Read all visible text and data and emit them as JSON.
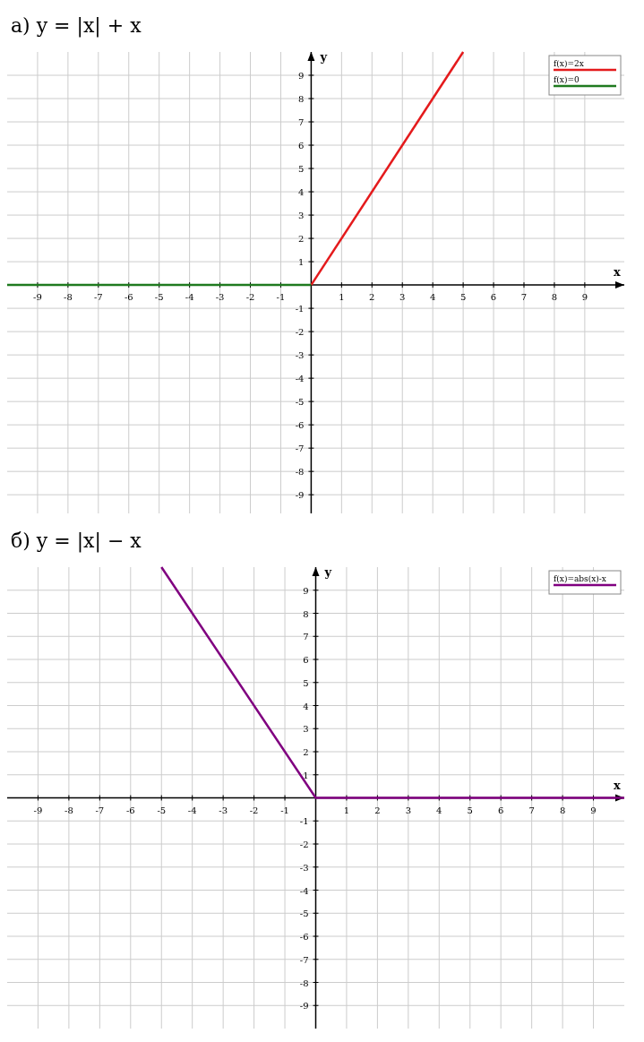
{
  "chart_data": [
    {
      "type": "line",
      "title": "а) y = |x| + x",
      "xlabel": "x",
      "ylabel": "y",
      "xlim": [
        -10,
        10.3
      ],
      "ylim": [
        -9.8,
        10
      ],
      "xticks": [
        -9,
        -8,
        -7,
        -6,
        -5,
        -4,
        -3,
        -2,
        -1,
        1,
        2,
        3,
        4,
        5,
        6,
        7,
        8,
        9
      ],
      "yticks": [
        -9,
        -8,
        -7,
        -6,
        -5,
        -4,
        -3,
        -2,
        -1,
        1,
        2,
        3,
        4,
        5,
        6,
        7,
        8,
        9
      ],
      "grid": true,
      "legend": "top right",
      "series": [
        {
          "name": "f(x)=2x",
          "color": "#e41a1c",
          "x": [
            0,
            5
          ],
          "values": [
            0,
            10
          ]
        },
        {
          "name": "f(x)=0",
          "color": "#1f7a1f",
          "x": [
            -10,
            0
          ],
          "values": [
            0,
            0
          ]
        }
      ]
    },
    {
      "type": "line",
      "title": "б) y = |x| − x",
      "xlabel": "x",
      "ylabel": "y",
      "xlim": [
        -10,
        10
      ],
      "ylim": [
        -10,
        10
      ],
      "xticks": [
        -9,
        -8,
        -7,
        -6,
        -5,
        -4,
        -3,
        -2,
        -1,
        1,
        2,
        3,
        4,
        5,
        6,
        7,
        8,
        9
      ],
      "yticks": [
        -9,
        -8,
        -7,
        -6,
        -5,
        -4,
        -3,
        -2,
        -1,
        1,
        2,
        3,
        4,
        5,
        6,
        7,
        8,
        9
      ],
      "grid": true,
      "legend": "top right",
      "series": [
        {
          "name": "f(x)=abs(x)-x",
          "color": "#800080",
          "x": [
            -5,
            0,
            10
          ],
          "values": [
            10,
            0,
            0
          ]
        }
      ]
    }
  ]
}
